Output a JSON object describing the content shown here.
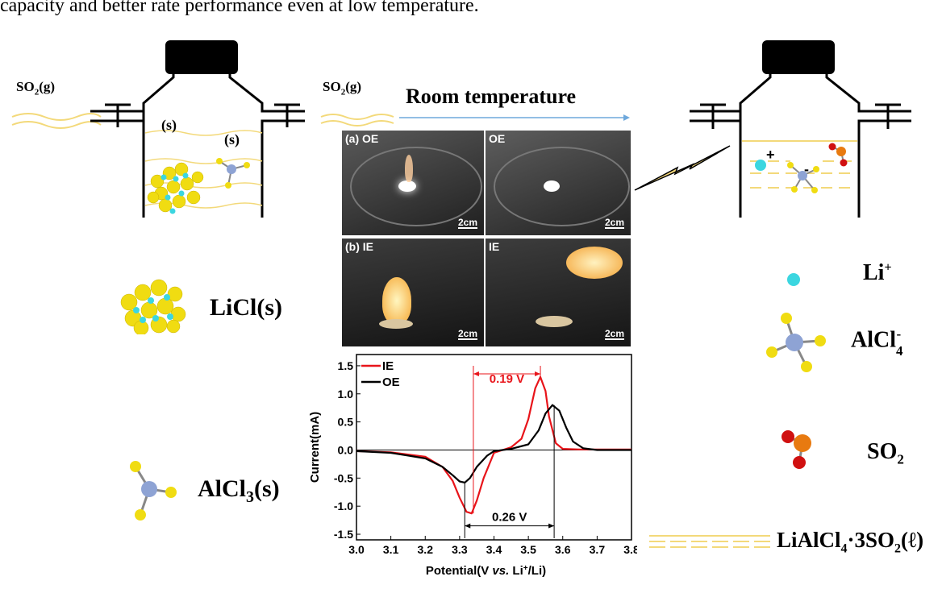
{
  "header_text": "capacity and better rate performance even at low temperature.",
  "left_flask": {
    "gas_label": "SO",
    "gas_sub": "2",
    "gas_suffix": "(g)",
    "solid_label_1": "(s)",
    "solid_label_2": "(s)"
  },
  "middle": {
    "gas_label": "SO",
    "gas_sub": "2",
    "gas_suffix": "(g)",
    "arrow_label": "Room temperature"
  },
  "photos": [
    {
      "label": "(a) OE",
      "scale": "2cm"
    },
    {
      "label": "OE",
      "scale": "2cm"
    },
    {
      "label": "(b) IE",
      "scale": "2cm"
    },
    {
      "label": "IE",
      "scale": "2cm"
    }
  ],
  "left_legend": {
    "licl": "LiCl(s)",
    "alcl3_pre": "AlCl",
    "alcl3_sub": "3",
    "alcl3_post": "(s)"
  },
  "right_legend": {
    "li": "Li",
    "li_sup": "+",
    "alcl4": "AlCl",
    "alcl4_sub": "4",
    "alcl4_sup": "-",
    "so2": "SO",
    "so2_sub": "2",
    "product_pre": "LiAlCl",
    "product_sub1": "4",
    "product_mid": "·3SO",
    "product_sub2": "2",
    "product_post": "(ℓ)"
  },
  "right_flask": {
    "plus": "+",
    "minus": "-"
  },
  "chart_data": {
    "type": "line",
    "xlabel": "Potential(V vs. Li+/Li)",
    "xlabel_parts": {
      "pre": "Potential(V ",
      "vs": "vs.",
      "mid": " Li",
      "sup": "+",
      "post": "/Li)"
    },
    "ylabel": "Current(mA)",
    "xlim": [
      3.0,
      3.8
    ],
    "ylim": [
      -1.6,
      1.7
    ],
    "x_ticks": [
      "3.0",
      "3.1",
      "3.2",
      "3.3",
      "3.4",
      "3.5",
      "3.6",
      "3.7",
      "3.8"
    ],
    "y_ticks": [
      "1.5",
      "1.0",
      "0.5",
      "0.0",
      "-0.5",
      "-1.0",
      "-1.5"
    ],
    "series": [
      {
        "name": "IE",
        "color": "#e8141a",
        "x": [
          3.0,
          3.1,
          3.2,
          3.25,
          3.28,
          3.3,
          3.32,
          3.335,
          3.35,
          3.37,
          3.4,
          3.45,
          3.48,
          3.5,
          3.52,
          3.535,
          3.55,
          3.56,
          3.58,
          3.6,
          3.65,
          3.8
        ],
        "y": [
          -0.02,
          -0.04,
          -0.12,
          -0.3,
          -0.55,
          -0.85,
          -1.1,
          -1.13,
          -0.9,
          -0.5,
          -0.05,
          0.05,
          0.2,
          0.55,
          1.1,
          1.3,
          1.05,
          0.6,
          0.12,
          0.02,
          0.01,
          0.01
        ]
      },
      {
        "name": "OE",
        "color": "#000000",
        "x": [
          3.0,
          3.1,
          3.2,
          3.25,
          3.28,
          3.3,
          3.315,
          3.33,
          3.35,
          3.38,
          3.4,
          3.45,
          3.5,
          3.53,
          3.55,
          3.57,
          3.59,
          3.61,
          3.63,
          3.66,
          3.7,
          3.8
        ],
        "y": [
          -0.02,
          -0.05,
          -0.15,
          -0.3,
          -0.45,
          -0.56,
          -0.58,
          -0.5,
          -0.3,
          -0.1,
          -0.02,
          0.02,
          0.1,
          0.35,
          0.65,
          0.8,
          0.7,
          0.4,
          0.15,
          0.03,
          0.0,
          0.0
        ]
      }
    ],
    "annotations": [
      {
        "text": "0.19 V",
        "color": "#e8141a"
      },
      {
        "text": "0.26 V",
        "color": "#000000"
      }
    ]
  }
}
